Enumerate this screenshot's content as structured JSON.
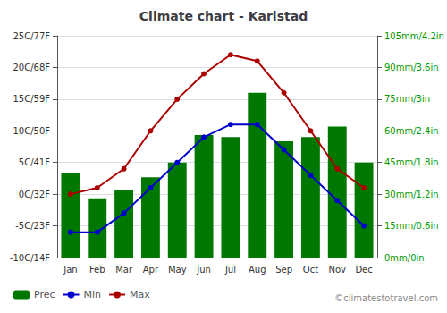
{
  "chart_data": {
    "type": "bar",
    "title": "Climate chart - Karlstad",
    "categories": [
      "Jan",
      "Feb",
      "Mar",
      "Apr",
      "May",
      "Jun",
      "Jul",
      "Aug",
      "Sep",
      "Oct",
      "Nov",
      "Dec"
    ],
    "series": [
      {
        "name": "Prec",
        "type": "bar",
        "axis": "y2",
        "color": "#007700",
        "values": [
          40,
          28,
          32,
          38,
          45,
          58,
          57,
          78,
          55,
          57,
          62,
          45
        ]
      },
      {
        "name": "Min",
        "type": "line",
        "color": "#0000cc",
        "marker": "circle",
        "line_style": "solid",
        "values": [
          -6,
          -6,
          -3,
          1,
          5,
          9,
          11,
          11,
          7,
          3,
          -1,
          -5
        ]
      },
      {
        "name": "Max",
        "type": "line",
        "color": "#aa0000",
        "marker": "circle",
        "line_style": "solid",
        "values": [
          0,
          1,
          4,
          10,
          15,
          19,
          22,
          21,
          16,
          10,
          4,
          1
        ]
      }
    ],
    "ylim": [
      -10,
      25
    ],
    "yticks": [
      {
        "value": -10,
        "label": "-10C/14F"
      },
      {
        "value": -5,
        "label": "-5C/23F"
      },
      {
        "value": 0,
        "label": "0C/32F"
      },
      {
        "value": 5,
        "label": "5C/41F"
      },
      {
        "value": 10,
        "label": "10C/50F"
      },
      {
        "value": 15,
        "label": "15C/59F"
      },
      {
        "value": 20,
        "label": "20C/68F"
      },
      {
        "value": 25,
        "label": "25C/77F"
      }
    ],
    "y2lim": [
      0,
      105
    ],
    "y2ticks": [
      {
        "value": 0,
        "label": "0mm/0in"
      },
      {
        "value": 15,
        "label": "15mm/0.6in"
      },
      {
        "value": 30,
        "label": "30mm/1.2in"
      },
      {
        "value": 45,
        "label": "45mm/1.8in"
      },
      {
        "value": 60,
        "label": "60mm/2.4in"
      },
      {
        "value": 75,
        "label": "75mm/3in"
      },
      {
        "value": 90,
        "label": "90mm/3.6in"
      },
      {
        "value": 105,
        "label": "105mm/4.2in"
      }
    ],
    "grid": true,
    "legend": "lower left",
    "annotations": [
      "©climatestotravel.com"
    ]
  }
}
